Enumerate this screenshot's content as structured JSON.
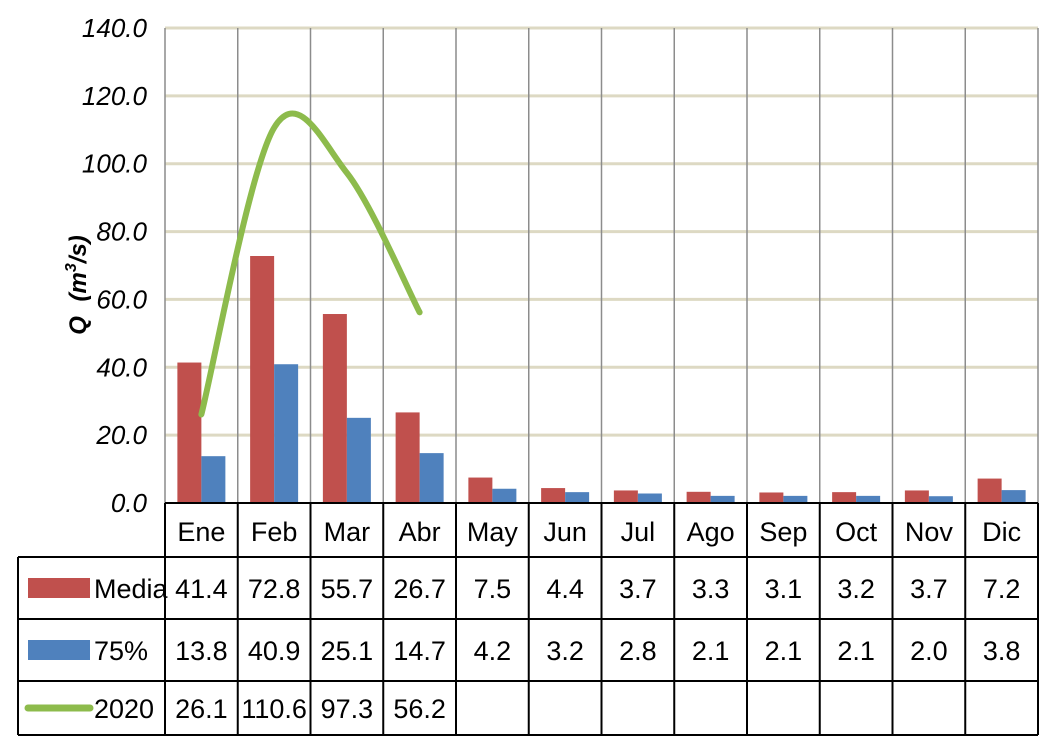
{
  "chart_data": {
    "type": "bar",
    "ylabel_main": "Q",
    "ylabel_unit_pre": "(m",
    "ylabel_unit_sup": "3",
    "ylabel_unit_post": "/s)",
    "ylim": [
      0,
      140
    ],
    "yticks": [
      "0.0",
      "20.0",
      "40.0",
      "60.0",
      "80.0",
      "100.0",
      "120.0",
      "140.0"
    ],
    "ytick_values": [
      0,
      20,
      40,
      60,
      80,
      100,
      120,
      140
    ],
    "categories": [
      "Ene",
      "Feb",
      "Mar",
      "Abr",
      "May",
      "Jun",
      "Jul",
      "Ago",
      "Sep",
      "Oct",
      "Nov",
      "Dic"
    ],
    "series": [
      {
        "name": "Media",
        "kind": "bar",
        "color": "#c0504d",
        "values": [
          41.4,
          72.8,
          55.7,
          26.7,
          7.5,
          4.4,
          3.7,
          3.3,
          3.1,
          3.2,
          3.7,
          7.2
        ],
        "labels": [
          "41.4",
          "72.8",
          "55.7",
          "26.7",
          "7.5",
          "4.4",
          "3.7",
          "3.3",
          "3.1",
          "3.2",
          "3.7",
          "7.2"
        ]
      },
      {
        "name": "75%",
        "kind": "bar",
        "color": "#4f81bd",
        "values": [
          13.8,
          40.9,
          25.1,
          14.7,
          4.2,
          3.2,
          2.8,
          2.1,
          2.1,
          2.1,
          2.0,
          3.8
        ],
        "labels": [
          "13.8",
          "40.9",
          "25.1",
          "14.7",
          "4.2",
          "3.2",
          "2.8",
          "2.1",
          "2.1",
          "2.1",
          "2.0",
          "3.8"
        ]
      },
      {
        "name": "2020",
        "kind": "line",
        "color": "#8dbb4c",
        "values": [
          26.1,
          110.6,
          97.3,
          56.2,
          null,
          null,
          null,
          null,
          null,
          null,
          null,
          null
        ],
        "labels": [
          "26.1",
          "110.6",
          "97.3",
          "56.2",
          "",
          "",
          "",
          "",
          "",
          "",
          "",
          ""
        ]
      }
    ],
    "grid": true,
    "legend": "data-table"
  }
}
